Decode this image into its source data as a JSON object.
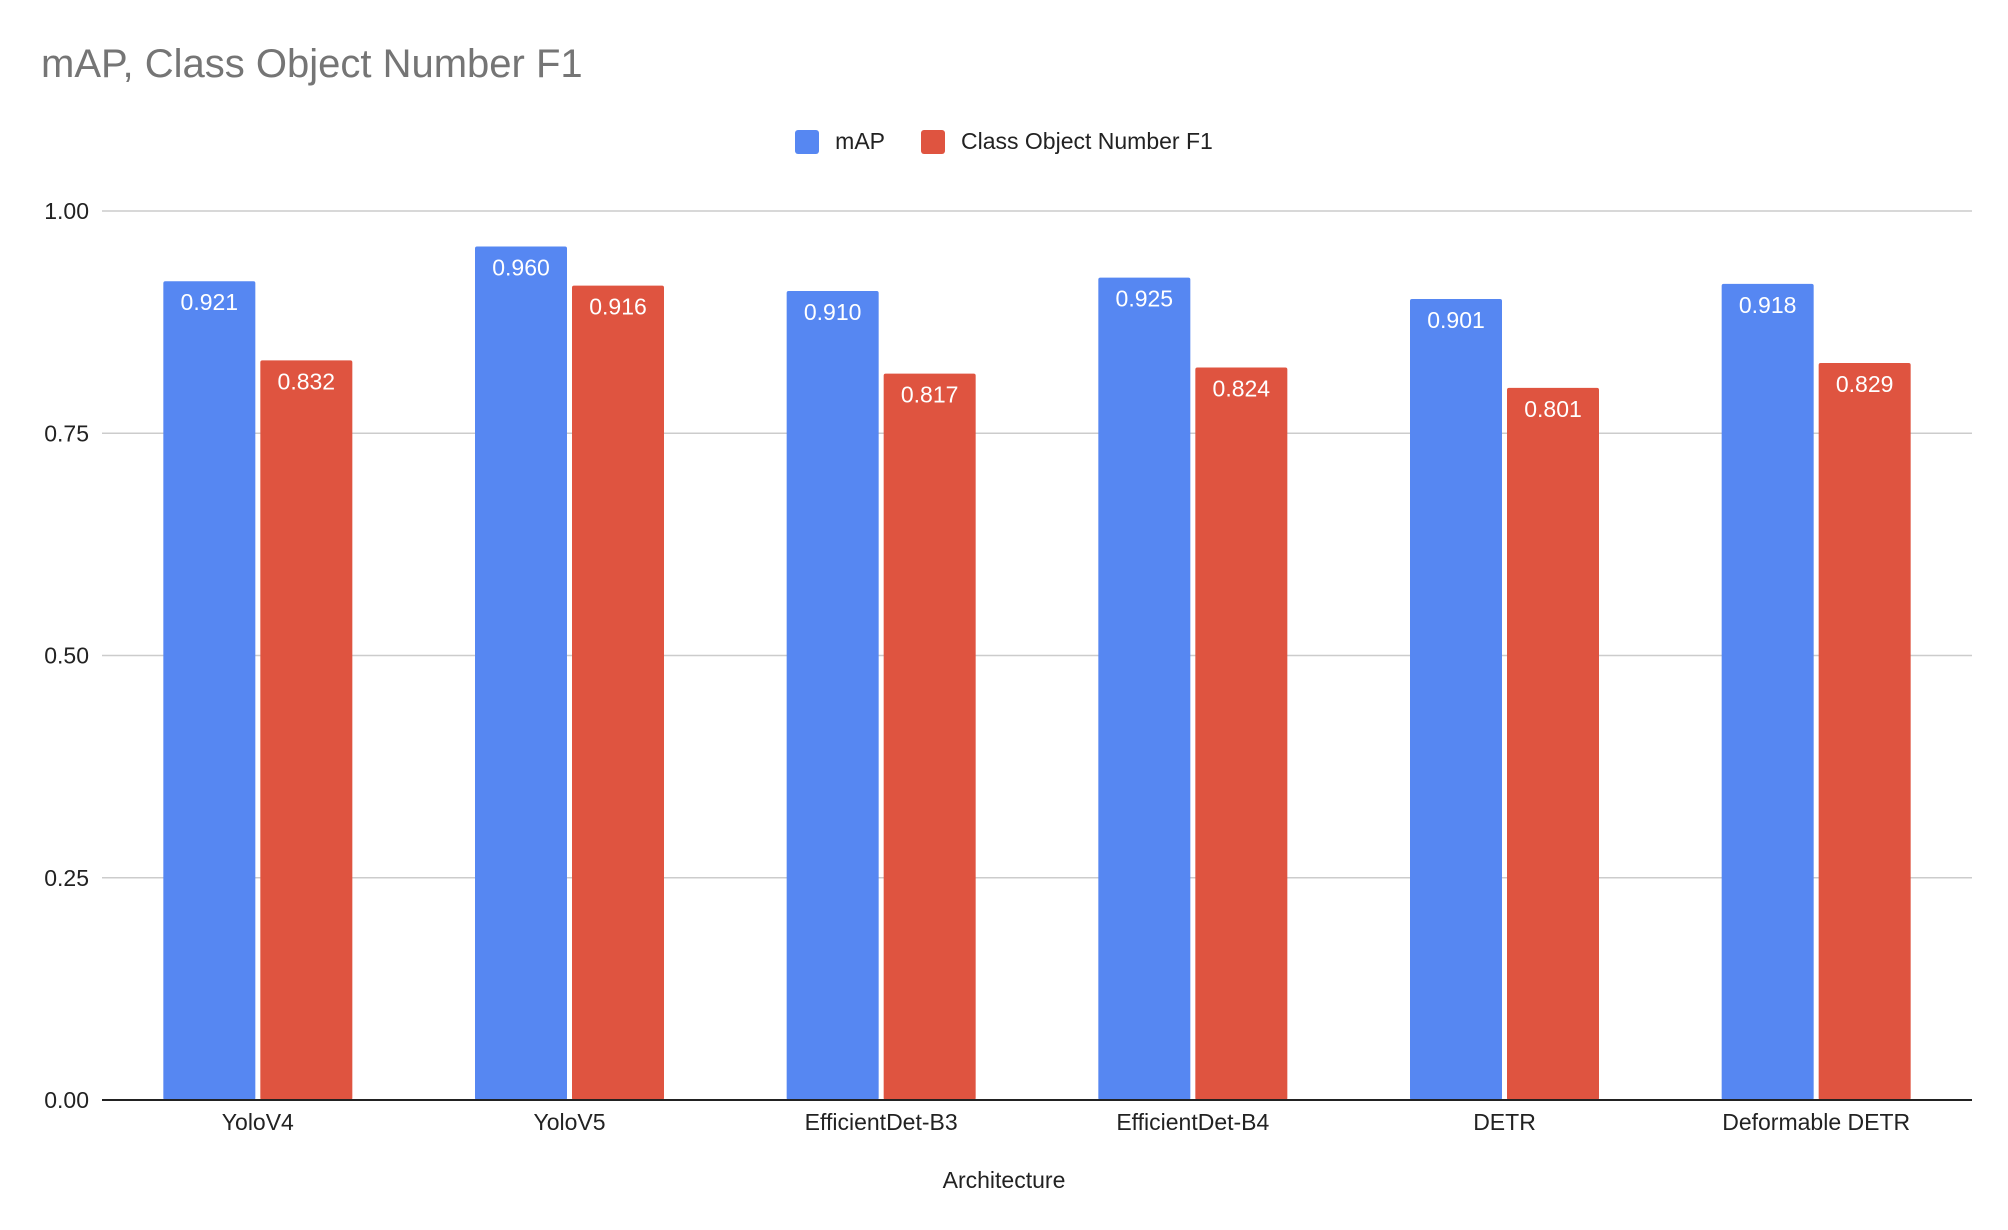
{
  "chart_data": {
    "type": "bar",
    "title": "mAP, Class Object Number F1",
    "xlabel": "Architecture",
    "ylabel": "",
    "ylim": [
      0,
      1.0
    ],
    "yticks": [
      "0.00",
      "0.25",
      "0.50",
      "0.75",
      "1.00"
    ],
    "ytick_values": [
      0,
      0.25,
      0.5,
      0.75,
      1.0
    ],
    "grid": true,
    "legend_position": "top-center",
    "categories": [
      "YoloV4",
      "YoloV5",
      "EfficientDet-B3",
      "EfficientDet-B4",
      "DETR",
      "Deformable DETR"
    ],
    "series": [
      {
        "name": "mAP",
        "color": "#5687F2",
        "values": [
          0.921,
          0.96,
          0.91,
          0.925,
          0.901,
          0.918
        ],
        "labels": [
          "0.921",
          "0.960",
          "0.910",
          "0.925",
          "0.901",
          "0.918"
        ]
      },
      {
        "name": "Class Object Number F1",
        "color": "#DF5440",
        "values": [
          0.832,
          0.916,
          0.817,
          0.824,
          0.801,
          0.829
        ],
        "labels": [
          "0.832",
          "0.916",
          "0.817",
          "0.824",
          "0.801",
          "0.829"
        ]
      }
    ]
  }
}
